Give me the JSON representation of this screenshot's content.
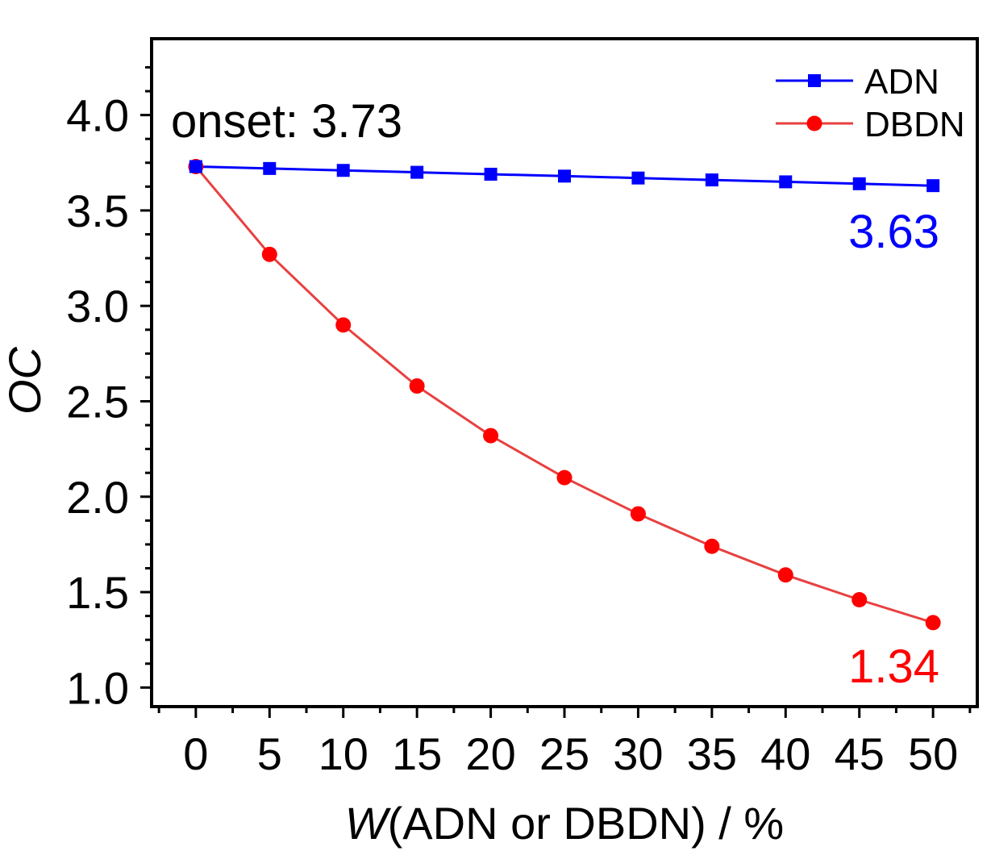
{
  "chart_data": {
    "type": "line",
    "xlabel_italic": "W",
    "xlabel_rest": "(ADN or DBDN) / %",
    "ylabel": "OC",
    "xlim": [
      -3,
      53
    ],
    "ylim": [
      0.9,
      4.4
    ],
    "x": [
      0,
      5,
      10,
      15,
      20,
      25,
      30,
      35,
      40,
      45,
      50
    ],
    "xticks": [
      "0",
      "5",
      "10",
      "15",
      "20",
      "25",
      "30",
      "35",
      "40",
      "45",
      "50"
    ],
    "yticks": [
      "1.0",
      "1.5",
      "2.0",
      "2.5",
      "3.0",
      "3.5",
      "4.0"
    ],
    "series": [
      {
        "name": "ADN",
        "color": "#0000ff",
        "marker": "square",
        "values": [
          3.73,
          3.72,
          3.71,
          3.7,
          3.69,
          3.68,
          3.67,
          3.66,
          3.65,
          3.64,
          3.63
        ]
      },
      {
        "name": "DBDN",
        "color": "#ff0000",
        "line_color": "#e84040",
        "marker": "circle",
        "values": [
          3.73,
          3.27,
          2.9,
          2.58,
          2.32,
          2.1,
          1.91,
          1.74,
          1.59,
          1.46,
          1.34
        ]
      }
    ],
    "annotations": [
      {
        "text": "onset: 3.73",
        "color": "#000000"
      },
      {
        "text": "3.63",
        "color": "#0000ff"
      },
      {
        "text": "1.34",
        "color": "#ff0000"
      }
    ],
    "legend_position": "top-right",
    "grid": false
  }
}
